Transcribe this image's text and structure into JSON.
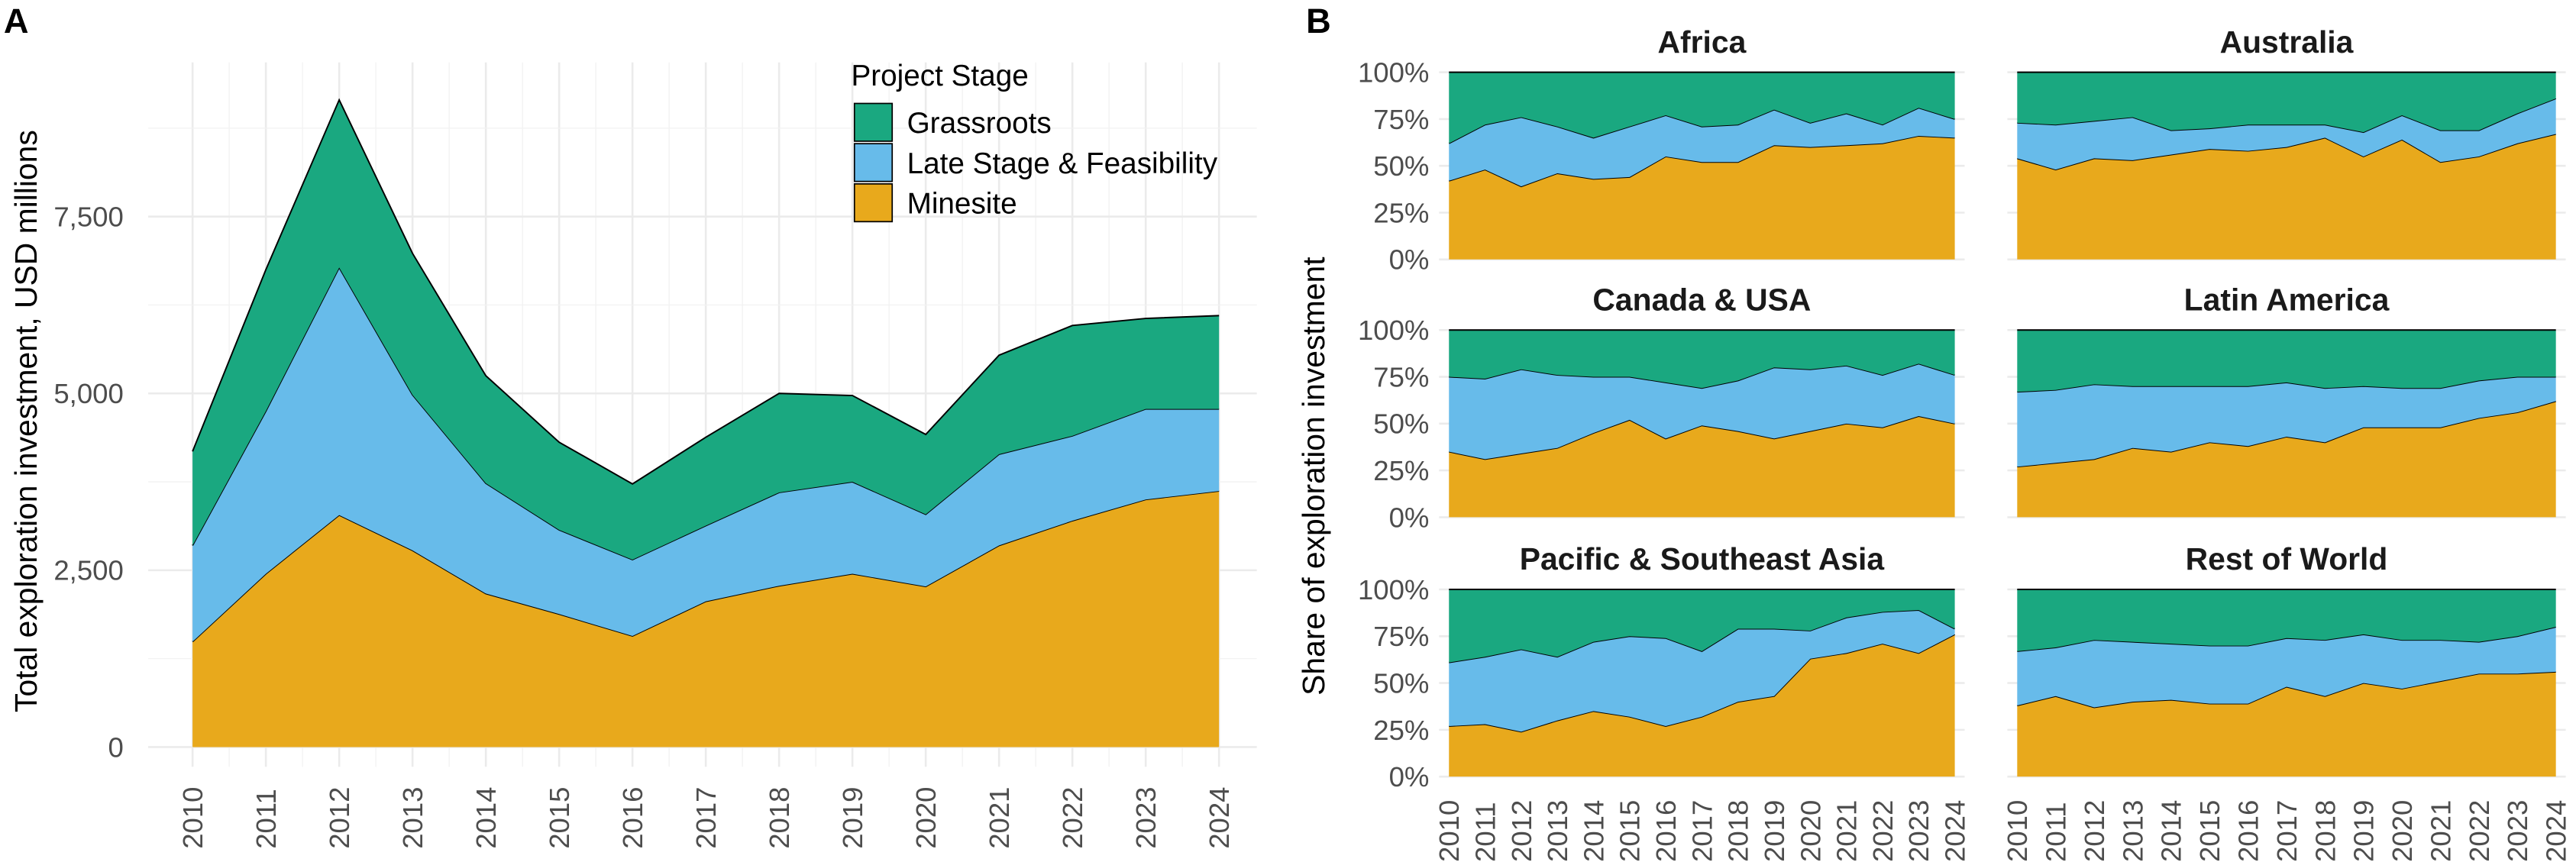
{
  "panel_labels": [
    "A",
    "B"
  ],
  "colors": {
    "Grassroots": "#1aa880",
    "Late Stage & Feasibility": "#67bbea",
    "Minesite": "#e8a91c"
  },
  "chart_data": [
    {
      "type": "area",
      "stacked": true,
      "panel": "A",
      "xlabel": "",
      "ylabel": "Total exploration investment, USD millions",
      "x": [
        "2010",
        "2011",
        "2012",
        "2013",
        "2014",
        "2015",
        "2016",
        "2017",
        "2018",
        "2019",
        "2020",
        "2021",
        "2022",
        "2023",
        "2024"
      ],
      "ylim": [
        0,
        9200
      ],
      "yticks": [
        0,
        2500,
        5000,
        7500
      ],
      "ytick_labels": [
        "0",
        "2,500",
        "5,000",
        "7,500"
      ],
      "grid": true,
      "legend": {
        "title": "Project Stage",
        "placement": "top-right",
        "entries": [
          "Grassroots",
          "Late Stage & Feasibility",
          "Minesite"
        ]
      },
      "series": [
        {
          "name": "Minesite",
          "values": [
            1490,
            2450,
            3280,
            2780,
            2170,
            1880,
            1570,
            2060,
            2280,
            2450,
            2270,
            2850,
            3200,
            3500,
            3620
          ]
        },
        {
          "name": "Late Stage & Feasibility",
          "values": [
            1360,
            2300,
            3500,
            2200,
            1560,
            1190,
            1080,
            1070,
            1320,
            1300,
            1020,
            1290,
            1200,
            1280,
            1160
          ]
        },
        {
          "name": "Grassroots",
          "values": [
            1330,
            2000,
            2370,
            2000,
            1520,
            1240,
            1070,
            1250,
            1400,
            1220,
            1130,
            1400,
            1560,
            1280,
            1320
          ]
        }
      ]
    },
    {
      "type": "area",
      "stacked": true,
      "normalized": true,
      "panel": "B",
      "ylabel": "Share of exploration investment",
      "x": [
        "2010",
        "2011",
        "2012",
        "2013",
        "2014",
        "2015",
        "2016",
        "2017",
        "2018",
        "2019",
        "2020",
        "2021",
        "2022",
        "2023",
        "2024"
      ],
      "ylim": [
        0,
        100
      ],
      "yticks": [
        0,
        25,
        50,
        75,
        100
      ],
      "ytick_labels": [
        "0%",
        "25%",
        "50%",
        "75%",
        "100%"
      ],
      "facets": [
        {
          "title": "Africa",
          "series": [
            {
              "name": "Minesite",
              "values": [
                42,
                48,
                39,
                46,
                43,
                44,
                55,
                52,
                52,
                61,
                60,
                61,
                62,
                66,
                65
              ]
            },
            {
              "name": "Late Stage & Feasibility",
              "values": [
                20,
                24,
                37,
                25,
                22,
                27,
                22,
                19,
                20,
                19,
                13,
                17,
                10,
                15,
                10
              ]
            },
            {
              "name": "Grassroots",
              "values": [
                38,
                28,
                24,
                29,
                35,
                29,
                23,
                29,
                28,
                20,
                27,
                22,
                28,
                19,
                25
              ]
            }
          ]
        },
        {
          "title": "Australia",
          "series": [
            {
              "name": "Minesite",
              "values": [
                54,
                48,
                54,
                53,
                56,
                59,
                58,
                60,
                65,
                55,
                64,
                52,
                55,
                62,
                67
              ]
            },
            {
              "name": "Late Stage & Feasibility",
              "values": [
                19,
                24,
                20,
                23,
                13,
                11,
                14,
                12,
                7,
                13,
                13,
                17,
                14,
                16,
                19
              ]
            },
            {
              "name": "Grassroots",
              "values": [
                27,
                28,
                26,
                24,
                31,
                30,
                28,
                28,
                28,
                32,
                23,
                31,
                31,
                22,
                14
              ]
            }
          ]
        },
        {
          "title": "Canada & USA",
          "series": [
            {
              "name": "Minesite",
              "values": [
                35,
                31,
                34,
                37,
                45,
                52,
                42,
                49,
                46,
                42,
                46,
                50,
                48,
                54,
                50
              ]
            },
            {
              "name": "Late Stage & Feasibility",
              "values": [
                40,
                43,
                45,
                39,
                30,
                23,
                30,
                20,
                27,
                38,
                33,
                31,
                28,
                28,
                26
              ]
            },
            {
              "name": "Grassroots",
              "values": [
                25,
                26,
                21,
                24,
                25,
                25,
                28,
                31,
                27,
                20,
                21,
                19,
                24,
                18,
                24
              ]
            }
          ]
        },
        {
          "title": "Latin America",
          "series": [
            {
              "name": "Minesite",
              "values": [
                27,
                29,
                31,
                37,
                35,
                40,
                38,
                43,
                40,
                48,
                48,
                48,
                53,
                56,
                62
              ]
            },
            {
              "name": "Late Stage & Feasibility",
              "values": [
                40,
                39,
                40,
                33,
                35,
                30,
                32,
                29,
                29,
                22,
                21,
                21,
                20,
                19,
                13
              ]
            },
            {
              "name": "Grassroots",
              "values": [
                33,
                32,
                29,
                30,
                30,
                30,
                30,
                28,
                31,
                30,
                31,
                31,
                27,
                25,
                25
              ]
            }
          ]
        },
        {
          "title": "Pacific & Southeast Asia",
          "series": [
            {
              "name": "Minesite",
              "values": [
                27,
                28,
                24,
                30,
                35,
                32,
                27,
                32,
                40,
                43,
                63,
                66,
                71,
                66,
                76
              ]
            },
            {
              "name": "Late Stage & Feasibility",
              "values": [
                34,
                36,
                44,
                34,
                37,
                43,
                47,
                35,
                39,
                36,
                15,
                19,
                17,
                23,
                3
              ]
            },
            {
              "name": "Grassroots",
              "values": [
                39,
                36,
                32,
                36,
                28,
                25,
                26,
                33,
                21,
                21,
                22,
                15,
                12,
                11,
                21
              ]
            }
          ]
        },
        {
          "title": "Rest of World",
          "series": [
            {
              "name": "Minesite",
              "values": [
                38,
                43,
                37,
                40,
                41,
                39,
                39,
                48,
                43,
                50,
                47,
                51,
                55,
                55,
                56
              ]
            },
            {
              "name": "Late Stage & Feasibility",
              "values": [
                29,
                26,
                36,
                32,
                30,
                31,
                31,
                26,
                30,
                26,
                26,
                22,
                17,
                20,
                24
              ]
            },
            {
              "name": "Grassroots",
              "values": [
                33,
                31,
                27,
                28,
                29,
                30,
                30,
                26,
                27,
                24,
                27,
                27,
                28,
                25,
                20
              ]
            }
          ]
        }
      ]
    }
  ]
}
